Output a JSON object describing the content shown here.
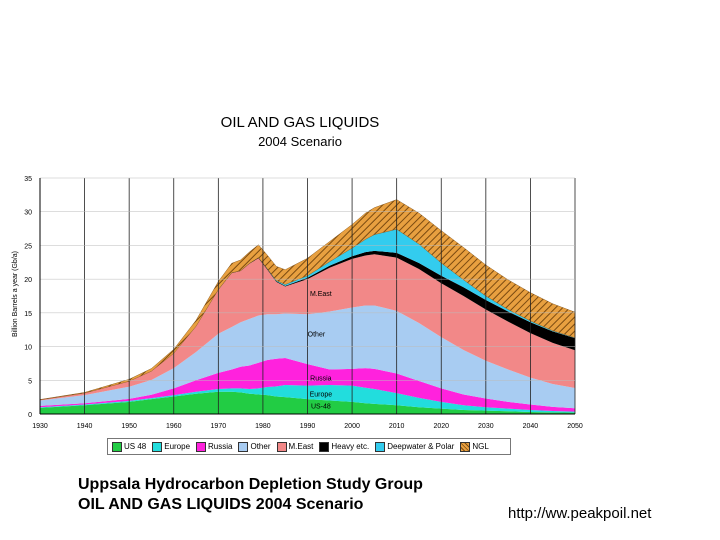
{
  "chart_data": {
    "type": "area",
    "title": "OIL AND GAS LIQUIDS",
    "subtitle": "2004 Scenario",
    "ylabel": "Billion Barrels a year (Gb/a)",
    "xlabel": "",
    "ylim": [
      0,
      35
    ],
    "xlim": [
      1930,
      2050
    ],
    "x_ticks": [
      "1930",
      "1940",
      "1950",
      "1960",
      "1970",
      "1980",
      "1990",
      "2000",
      "2010",
      "2020",
      "2030",
      "2040",
      "2050"
    ],
    "y_ticks": [
      "0",
      "5",
      "10",
      "15",
      "20",
      "25",
      "30",
      "35"
    ],
    "x": [
      1930,
      1940,
      1950,
      1955,
      1960,
      1965,
      1970,
      1973,
      1975,
      1977,
      1979,
      1981,
      1983,
      1985,
      1990,
      1995,
      2000,
      2003,
      2005,
      2010,
      2015,
      2020,
      2025,
      2030,
      2035,
      2040,
      2045,
      2050
    ],
    "series": [
      {
        "name": "US-48",
        "color": "#22cc44",
        "values": [
          0.9,
          1.3,
          1.8,
          2.2,
          2.6,
          3.0,
          3.3,
          3.3,
          3.2,
          3.0,
          2.9,
          2.8,
          2.6,
          2.5,
          2.2,
          2.0,
          1.8,
          1.6,
          1.5,
          1.3,
          1.0,
          0.8,
          0.6,
          0.5,
          0.4,
          0.3,
          0.25,
          0.2
        ]
      },
      {
        "name": "Europe",
        "color": "#22dddd",
        "values": [
          0.1,
          0.1,
          0.15,
          0.15,
          0.2,
          0.3,
          0.4,
          0.5,
          0.6,
          0.7,
          0.9,
          1.2,
          1.5,
          1.8,
          2.0,
          2.3,
          2.4,
          2.3,
          2.2,
          1.8,
          1.4,
          1.0,
          0.7,
          0.5,
          0.4,
          0.3,
          0.2,
          0.15
        ]
      },
      {
        "name": "Russia",
        "color": "#ff22dd",
        "values": [
          0.2,
          0.2,
          0.3,
          0.5,
          1.0,
          1.7,
          2.4,
          2.8,
          3.2,
          3.5,
          3.8,
          4.0,
          4.1,
          4.0,
          3.2,
          2.3,
          2.5,
          2.9,
          3.0,
          2.9,
          2.5,
          2.0,
          1.6,
          1.3,
          1.0,
          0.8,
          0.6,
          0.5
        ]
      },
      {
        "name": "Other",
        "color": "#a8ccf2",
        "values": [
          0.8,
          1.2,
          1.8,
          2.2,
          3.0,
          4.2,
          5.8,
          6.3,
          6.6,
          6.9,
          7.0,
          6.8,
          6.6,
          6.6,
          7.4,
          8.6,
          9.1,
          9.3,
          9.4,
          9.3,
          8.6,
          7.6,
          6.6,
          5.6,
          4.8,
          4.0,
          3.4,
          3.0
        ]
      },
      {
        "name": "M.East",
        "color": "#f28888",
        "values": [
          0.1,
          0.3,
          0.8,
          1.3,
          2.2,
          3.8,
          6.5,
          8.0,
          7.6,
          8.2,
          8.5,
          6.6,
          4.8,
          4.0,
          5.2,
          6.5,
          7.2,
          7.4,
          7.6,
          7.9,
          8.0,
          8.0,
          8.0,
          7.6,
          7.1,
          6.6,
          6.1,
          5.6
        ]
      },
      {
        "name": "Heavy etc",
        "color": "#000000",
        "values": [
          0,
          0,
          0,
          0,
          0,
          0,
          0.05,
          0.05,
          0.05,
          0.05,
          0.1,
          0.1,
          0.1,
          0.1,
          0.2,
          0.3,
          0.4,
          0.5,
          0.5,
          0.7,
          0.9,
          1.1,
          1.3,
          1.4,
          1.5,
          1.6,
          1.7,
          1.8
        ]
      },
      {
        "name": "Deepwater & Polar",
        "color": "#33ccee",
        "values": [
          0,
          0,
          0,
          0,
          0,
          0,
          0,
          0,
          0,
          0,
          0,
          0.05,
          0.1,
          0.2,
          0.3,
          0.6,
          1.2,
          1.9,
          2.4,
          3.5,
          2.8,
          1.9,
          1.1,
          0.6,
          0.3,
          0.2,
          0.1,
          0.05
        ]
      },
      {
        "name": "NGL",
        "color": "#d98a30",
        "hatched": true,
        "values": [
          0.05,
          0.1,
          0.3,
          0.4,
          0.6,
          0.9,
          1.2,
          1.4,
          1.6,
          1.7,
          1.9,
          2.0,
          2.1,
          2.2,
          2.6,
          3.0,
          3.5,
          3.9,
          4.0,
          4.4,
          4.6,
          4.8,
          4.8,
          4.6,
          4.4,
          4.2,
          4.0,
          3.8
        ]
      }
    ],
    "annotations": [
      {
        "text": "M.East",
        "x": 1993,
        "y": 17.5
      },
      {
        "text": "Other",
        "x": 1992,
        "y": 11.5
      },
      {
        "text": "Russia",
        "x": 1993,
        "y": 5.0
      },
      {
        "text": "Europe",
        "x": 1993,
        "y": 2.6
      },
      {
        "text": "US-48",
        "x": 1993,
        "y": 0.8
      }
    ],
    "legend": [
      "US 48",
      "Europe",
      "Russia",
      "Other",
      "M.East",
      "Heavy etc.",
      "Deepwater & Polar",
      "NGL"
    ],
    "legend_position": "bottom",
    "grid": true
  },
  "caption": {
    "line1": "Uppsala Hydrocarbon Depletion Study Group",
    "line2": "OIL AND GAS LIQUIDS 2004 Scenario"
  },
  "url": "http://ww.peakpoil.net"
}
